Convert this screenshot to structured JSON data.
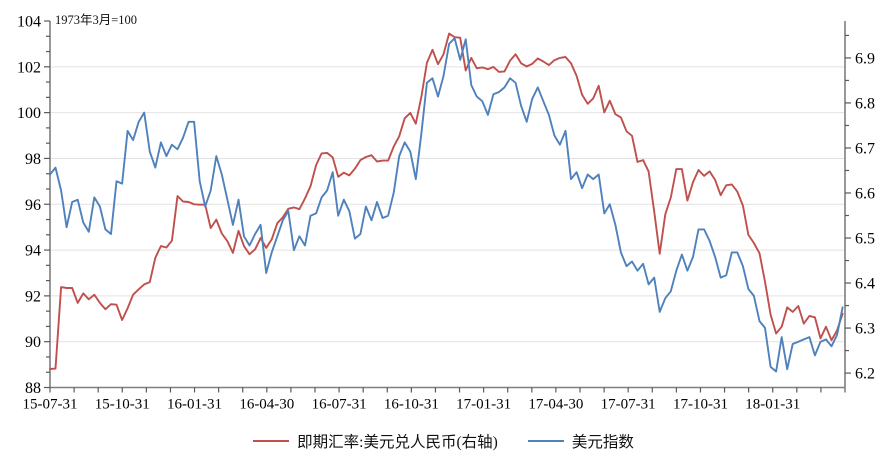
{
  "annotation": "1973年3月=100",
  "legend": [
    {
      "label": "即期汇率:美元兑人民币(右轴)",
      "color": "#bf504d"
    },
    {
      "label": "美元指数",
      "color": "#4f81bd"
    }
  ],
  "colors": {
    "red_series": "#bf504d",
    "blue_series": "#4f81bd",
    "gridline": "#e2e2e2",
    "axis_spine": "#7f7f7f",
    "tick": "#595959",
    "text": "#000000"
  },
  "chart_data": {
    "type": "line",
    "title": "",
    "note": "1973年3月=100",
    "grid": true,
    "legend_position": "bottom",
    "sampling": "weekly from 2015-07-31 to 2018-04-27 (values read off chart)",
    "n_points": 144,
    "x_axis": {
      "start": "15-07-31",
      "end": "18-04-30",
      "months_span": 33,
      "minor_tick_every": "1 month",
      "labels": [
        "15-07-31",
        "15-10-31",
        "16-01-31",
        "16-04-30",
        "16-07-31",
        "16-10-31",
        "17-01-31",
        "17-04-30",
        "17-07-31",
        "17-10-31",
        "18-01-31"
      ],
      "label_every_n_months": 3
    },
    "left_axis": {
      "series": "美元指数",
      "ticks": [
        88,
        90,
        92,
        94,
        96,
        98,
        100,
        102,
        104
      ],
      "ylim": [
        88,
        104
      ],
      "minor_divisions_per_major": 3
    },
    "right_axis": {
      "series": "即期汇率:美元兑人民币(右轴)",
      "ticks": [
        6.2,
        6.3,
        6.4,
        6.5,
        6.6,
        6.7,
        6.8,
        6.9
      ],
      "ylim": [
        6.168,
        6.982
      ],
      "minor_divisions_per_major": 2
    },
    "series": [
      {
        "name": "即期汇率:美元兑人民币(右轴)",
        "axis": "right",
        "color": "#bf504d",
        "values": [
          6.209,
          6.21,
          6.391,
          6.389,
          6.389,
          6.356,
          6.377,
          6.364,
          6.374,
          6.356,
          6.342,
          6.353,
          6.352,
          6.318,
          6.344,
          6.374,
          6.386,
          6.397,
          6.402,
          6.456,
          6.482,
          6.479,
          6.494,
          6.593,
          6.581,
          6.58,
          6.575,
          6.574,
          6.574,
          6.522,
          6.541,
          6.51,
          6.493,
          6.467,
          6.516,
          6.482,
          6.464,
          6.475,
          6.5,
          6.478,
          6.497,
          6.533,
          6.546,
          6.565,
          6.568,
          6.564,
          6.588,
          6.615,
          6.662,
          6.688,
          6.689,
          6.679,
          6.636,
          6.645,
          6.639,
          6.654,
          6.673,
          6.68,
          6.684,
          6.67,
          6.672,
          6.672,
          6.703,
          6.726,
          6.766,
          6.778,
          6.754,
          6.814,
          6.889,
          6.918,
          6.886,
          6.908,
          6.954,
          6.946,
          6.945,
          6.872,
          6.9,
          6.877,
          6.879,
          6.875,
          6.88,
          6.869,
          6.87,
          6.894,
          6.908,
          6.888,
          6.881,
          6.887,
          6.899,
          6.892,
          6.884,
          6.895,
          6.9,
          6.902,
          6.888,
          6.86,
          6.818,
          6.798,
          6.81,
          6.838,
          6.779,
          6.805,
          6.775,
          6.768,
          6.737,
          6.727,
          6.669,
          6.673,
          6.648,
          6.559,
          6.465,
          6.553,
          6.59,
          6.653,
          6.653,
          6.583,
          6.624,
          6.651,
          6.638,
          6.648,
          6.629,
          6.595,
          6.617,
          6.619,
          6.603,
          6.572,
          6.507,
          6.489,
          6.466,
          6.403,
          6.33,
          6.288,
          6.303,
          6.346,
          6.336,
          6.349,
          6.31,
          6.327,
          6.324,
          6.277,
          6.303,
          6.273,
          6.295,
          6.332
        ]
      },
      {
        "name": "美元指数",
        "axis": "left",
        "color": "#4f81bd",
        "values": [
          97.3,
          97.6,
          96.6,
          95.0,
          96.1,
          96.2,
          95.2,
          94.8,
          96.3,
          95.9,
          94.9,
          94.7,
          97.0,
          96.9,
          99.2,
          98.8,
          99.6,
          100.0,
          98.3,
          97.6,
          98.7,
          98.1,
          98.6,
          98.4,
          98.9,
          99.6,
          99.6,
          97.0,
          95.9,
          96.6,
          98.1,
          97.3,
          96.2,
          95.1,
          96.2,
          94.6,
          94.2,
          94.7,
          95.1,
          93.0,
          93.9,
          94.6,
          95.3,
          95.7,
          94.0,
          94.6,
          94.2,
          95.5,
          95.6,
          96.3,
          96.6,
          97.4,
          95.5,
          96.2,
          95.7,
          94.5,
          94.7,
          95.9,
          95.3,
          96.1,
          95.4,
          95.5,
          96.5,
          98.1,
          98.7,
          98.3,
          97.1,
          99.1,
          101.3,
          101.5,
          100.7,
          101.6,
          103.0,
          103.25,
          102.3,
          103.2,
          101.2,
          100.7,
          100.5,
          99.9,
          100.8,
          100.9,
          101.1,
          101.5,
          101.3,
          100.3,
          99.6,
          100.6,
          101.1,
          100.5,
          99.9,
          99.0,
          98.6,
          99.2,
          97.1,
          97.4,
          96.7,
          97.3,
          97.1,
          97.3,
          95.6,
          96.0,
          95.1,
          93.9,
          93.3,
          93.5,
          93.1,
          93.4,
          92.5,
          92.8,
          91.3,
          91.9,
          92.2,
          93.1,
          93.8,
          93.1,
          93.7,
          94.9,
          94.9,
          94.4,
          93.7,
          92.8,
          92.9,
          93.9,
          93.9,
          93.3,
          92.3,
          92.0,
          90.9,
          90.6,
          88.9,
          88.7,
          90.2,
          88.8,
          89.9,
          90.0,
          90.1,
          90.2,
          89.4,
          90.0,
          90.1,
          89.8,
          90.3,
          91.5
        ]
      }
    ]
  }
}
